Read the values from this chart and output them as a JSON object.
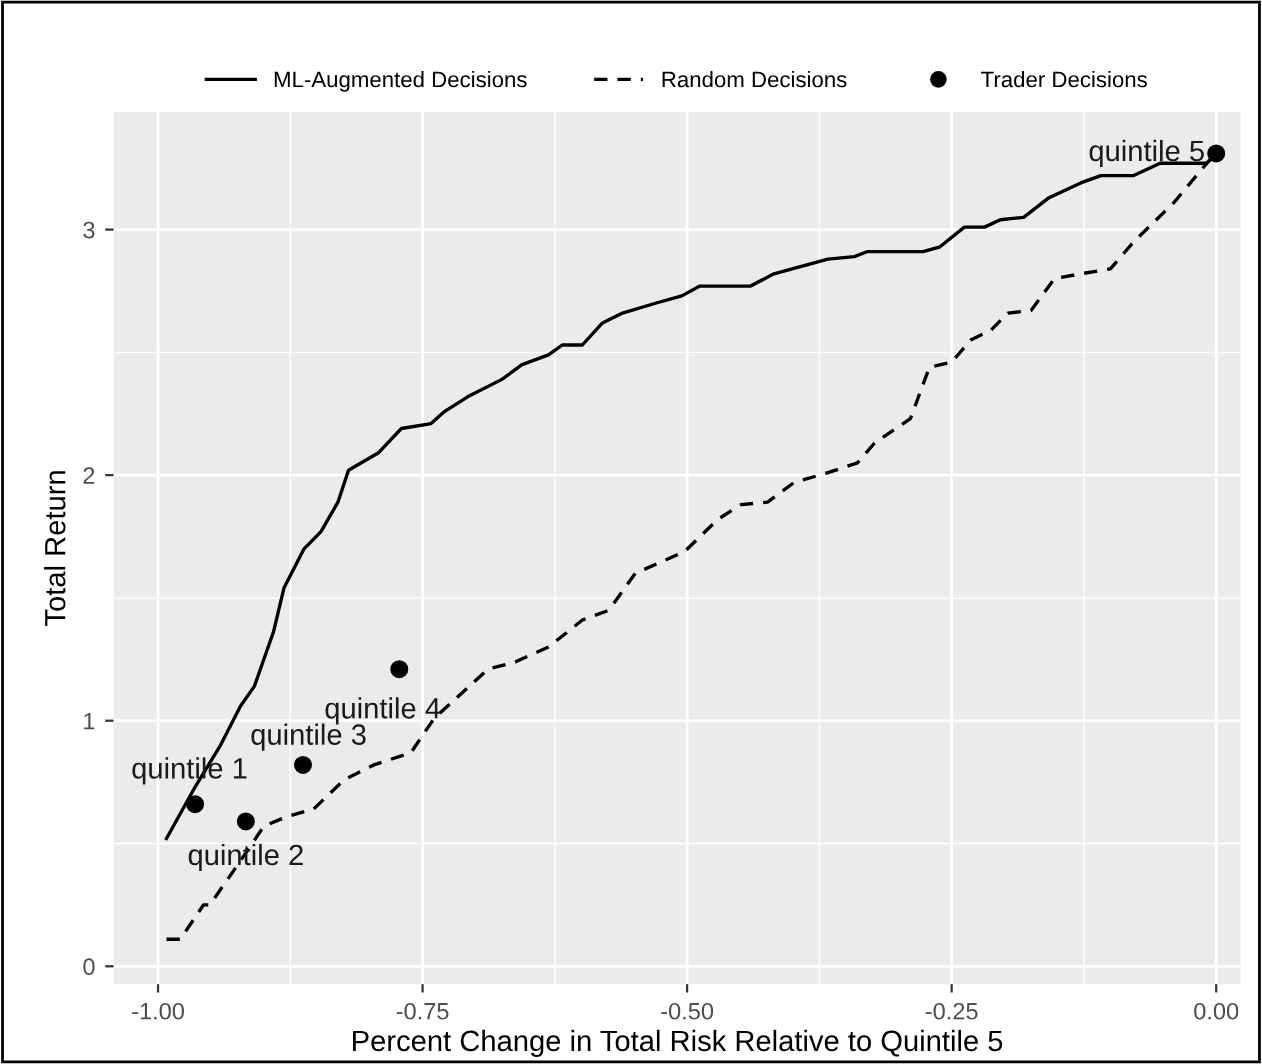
{
  "chart_data": {
    "type": "line",
    "xlabel": "Percent Change in Total Risk Relative to Quintile 5",
    "ylabel": "Total Return",
    "xlim": [
      -1.042,
      0.023
    ],
    "ylim": [
      -0.073,
      3.48
    ],
    "xticks": [
      {
        "value": -1.0,
        "label": "-1.00"
      },
      {
        "value": -0.75,
        "label": "-0.75"
      },
      {
        "value": -0.5,
        "label": "-0.50"
      },
      {
        "value": -0.25,
        "label": "-0.25"
      },
      {
        "value": 0.0,
        "label": "0.00"
      }
    ],
    "yticks": [
      0,
      1,
      2,
      3
    ],
    "grid": true,
    "legend": "top",
    "series": [
      {
        "name": "ML-Augmented Decisions",
        "color": "#000000",
        "line_style": "solid",
        "x": [
          -0.992,
          -0.965,
          -0.941,
          -0.922,
          -0.909,
          -0.891,
          -0.881,
          -0.862,
          -0.846,
          -0.83,
          -0.82,
          -0.792,
          -0.77,
          -0.742,
          -0.729,
          -0.707,
          -0.675,
          -0.656,
          -0.631,
          -0.618,
          -0.599,
          -0.58,
          -0.561,
          -0.53,
          -0.505,
          -0.488,
          -0.44,
          -0.418,
          -0.367,
          -0.342,
          -0.33,
          -0.277,
          -0.261,
          -0.238,
          -0.219,
          -0.204,
          -0.182,
          -0.158,
          -0.128,
          -0.109,
          -0.078,
          -0.053,
          -0.009,
          0.0
        ],
        "values": [
          0.52,
          0.73,
          0.9,
          1.06,
          1.14,
          1.36,
          1.54,
          1.7,
          1.77,
          1.89,
          2.02,
          2.09,
          2.19,
          2.21,
          2.26,
          2.32,
          2.39,
          2.45,
          2.49,
          2.53,
          2.53,
          2.62,
          2.66,
          2.7,
          2.73,
          2.77,
          2.77,
          2.82,
          2.88,
          2.89,
          2.91,
          2.91,
          2.93,
          3.01,
          3.01,
          3.04,
          3.05,
          3.13,
          3.19,
          3.22,
          3.22,
          3.27,
          3.27,
          3.31
        ]
      },
      {
        "name": "Random Decisions",
        "color": "#000000",
        "line_style": "dashed",
        "x": [
          -0.992,
          -0.979,
          -0.957,
          -0.951,
          -0.922,
          -0.9,
          -0.878,
          -0.853,
          -0.824,
          -0.796,
          -0.761,
          -0.739,
          -0.688,
          -0.662,
          -0.631,
          -0.599,
          -0.574,
          -0.549,
          -0.502,
          -0.471,
          -0.449,
          -0.424,
          -0.399,
          -0.367,
          -0.339,
          -0.323,
          -0.289,
          -0.271,
          -0.25,
          -0.232,
          -0.213,
          -0.197,
          -0.175,
          -0.153,
          -0.128,
          -0.1,
          -0.078,
          -0.04,
          -0.003,
          0.0
        ],
        "values": [
          0.11,
          0.11,
          0.25,
          0.25,
          0.43,
          0.57,
          0.61,
          0.64,
          0.76,
          0.82,
          0.87,
          1.01,
          1.21,
          1.24,
          1.3,
          1.41,
          1.45,
          1.6,
          1.69,
          1.82,
          1.88,
          1.89,
          1.97,
          2.01,
          2.05,
          2.13,
          2.23,
          2.44,
          2.46,
          2.55,
          2.59,
          2.66,
          2.67,
          2.8,
          2.82,
          2.84,
          2.95,
          3.11,
          3.3,
          3.31
        ]
      },
      {
        "name": "Trader Decisions",
        "type": "scatter",
        "color": "#000000",
        "marker": "circle",
        "x": [
          -0.965,
          -0.917,
          -0.863,
          -0.772,
          0.0
        ],
        "values": [
          0.66,
          0.59,
          0.82,
          1.21,
          3.31
        ]
      }
    ],
    "annotations": [
      {
        "text": "quintile 1",
        "x": -0.965,
        "y": 0.66
      },
      {
        "text": "quintile 2",
        "x": -0.917,
        "y": 0.59
      },
      {
        "text": "quintile 3",
        "x": -0.863,
        "y": 0.82
      },
      {
        "text": "quintile 4",
        "x": -0.772,
        "y": 1.21
      },
      {
        "text": "quintile 5",
        "x": 0.0,
        "y": 3.31
      }
    ]
  }
}
